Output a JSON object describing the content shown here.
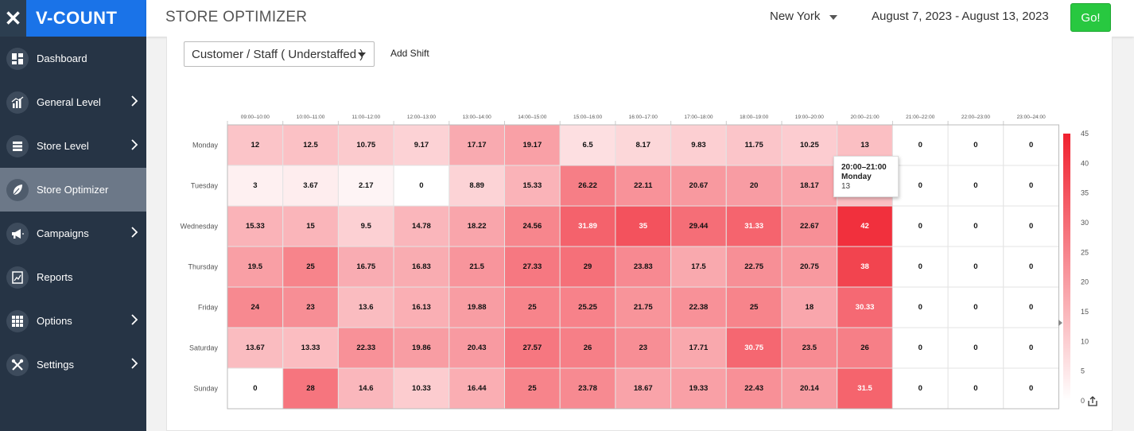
{
  "brand": {
    "name": "V-COUNT",
    "icon": "close-x-icon",
    "color": "#1a73e8"
  },
  "sidebar": {
    "items": [
      {
        "label": "Dashboard",
        "icon": "dashboard-icon",
        "expandable": false,
        "active": false
      },
      {
        "label": "General Level",
        "icon": "chart-icon",
        "expandable": true,
        "active": false
      },
      {
        "label": "Store Level",
        "icon": "store-icon",
        "expandable": true,
        "active": false
      },
      {
        "label": "Store Optimizer",
        "icon": "leaf-icon",
        "expandable": false,
        "active": true
      },
      {
        "label": "Campaigns",
        "icon": "megaphone-icon",
        "expandable": true,
        "active": false
      },
      {
        "label": "Reports",
        "icon": "report-icon",
        "expandable": false,
        "active": false
      },
      {
        "label": "Options",
        "icon": "grid-icon",
        "expandable": true,
        "active": false
      },
      {
        "label": "Settings",
        "icon": "wrench-icon",
        "expandable": true,
        "active": false
      }
    ]
  },
  "header": {
    "title": "STORE OPTIMIZER",
    "location": "New York",
    "date_range": "August 7, 2023 - August 13, 2023",
    "go_label": "Go!"
  },
  "controls": {
    "metric_selected": "Customer / Staff ( Understaffed )",
    "add_shift_label": "Add Shift"
  },
  "tooltip": {
    "time": "20:00–21:00",
    "day": "Monday",
    "value": "13"
  },
  "colors": {
    "heat_low": "#ffffff",
    "heat_high": "#f0212f",
    "go": "#28c840",
    "sidebar_bg": "#263445",
    "active_bg": "#6c7888"
  },
  "chart_data": {
    "type": "heatmap",
    "x": [
      "09:00–10:00",
      "10:00–11:00",
      "11:00–12:00",
      "12:00–13:00",
      "13:00–14:00",
      "14:00–15:00",
      "15:00–16:00",
      "16:00–17:00",
      "17:00–18:00",
      "18:00–19:00",
      "19:00–20:00",
      "20:00–21:00",
      "21:00–22:00",
      "22:00–23:00",
      "23:00–24:00"
    ],
    "y": [
      "Monday",
      "Tuesday",
      "Wednesday",
      "Thursday",
      "Friday",
      "Saturday",
      "Sunday"
    ],
    "values": [
      [
        12,
        12.5,
        10.75,
        9.17,
        17.17,
        19.17,
        6.5,
        8.17,
        9.83,
        11.75,
        10.25,
        13,
        0,
        0,
        0
      ],
      [
        3,
        3.67,
        2.17,
        0,
        8.89,
        15.33,
        26.22,
        22.11,
        20.67,
        20,
        18.17,
        13,
        0,
        0,
        0
      ],
      [
        15.33,
        15,
        9.5,
        14.78,
        18.22,
        24.56,
        31.89,
        35,
        29.44,
        31.33,
        22.67,
        42,
        0,
        0,
        0
      ],
      [
        19.5,
        25,
        16.75,
        16.83,
        21.5,
        27.33,
        29,
        23.83,
        17.5,
        22.75,
        20.75,
        38,
        0,
        0,
        0
      ],
      [
        24,
        23,
        13.6,
        16.13,
        19.88,
        25,
        25.25,
        21.75,
        22.38,
        25,
        18,
        30.33,
        0,
        0,
        0
      ],
      [
        13.67,
        13.33,
        22.33,
        19.86,
        20.43,
        27.57,
        26,
        23,
        17.71,
        30.75,
        23.5,
        26,
        0,
        0,
        0
      ],
      [
        0,
        28,
        14.6,
        10.33,
        16.44,
        25,
        23.78,
        18.67,
        19.33,
        22.43,
        20.14,
        31.5,
        0,
        0,
        0
      ]
    ],
    "legend": {
      "min": 0,
      "max": 45,
      "ticks": [
        0,
        5,
        10,
        15,
        20,
        25,
        30,
        35,
        40,
        45
      ]
    }
  }
}
